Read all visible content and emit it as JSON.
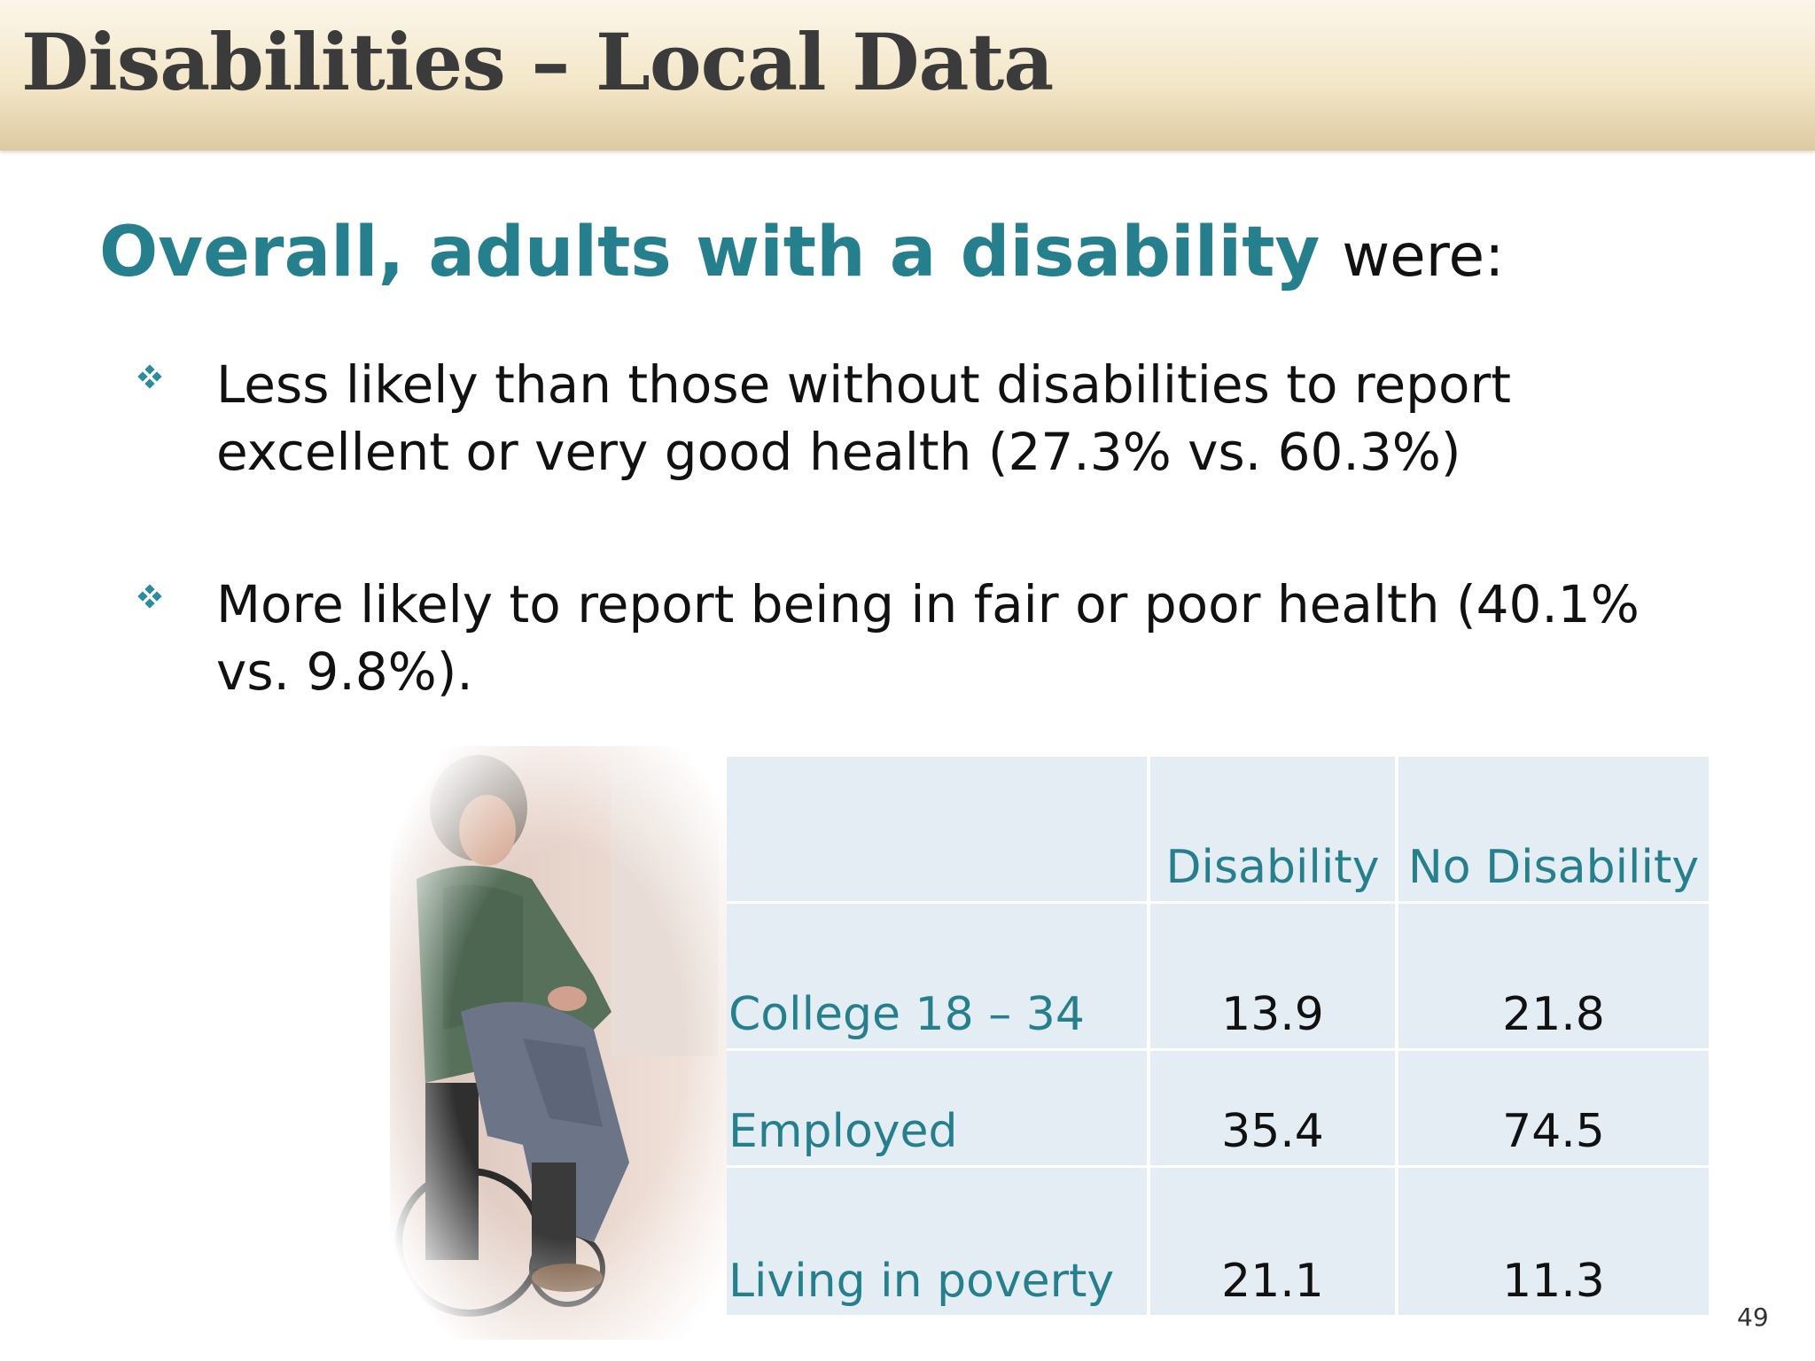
{
  "slide": {
    "title": "Disabilities – Local Data",
    "subtitle_lead": "Overall, adults with a disability",
    "subtitle_tail": "were:",
    "bullets": [
      "Less likely than those without disabilities to report excellent or very good health (27.3% vs. 60.3%)",
      "More likely to report being in fair or poor health (40.1% vs. 9.8%)."
    ],
    "page_number": "49"
  },
  "table": {
    "headers": [
      "",
      "Disability",
      "No Disability"
    ],
    "rows": [
      {
        "label": "College 18 – 34",
        "disability": "13.9",
        "no_disability": "21.8"
      },
      {
        "label": "Employed",
        "disability": "35.4",
        "no_disability": "74.5"
      },
      {
        "label": "Living in poverty",
        "disability": "21.1",
        "no_disability": "11.3"
      }
    ]
  },
  "colors": {
    "accent": "#267f8c",
    "title_text": "#3b3b3b",
    "table_fill": "#e4edf3",
    "bullet_mark": "#2c8c9c"
  },
  "icons": {
    "bullet": "diamond-cluster-icon"
  }
}
